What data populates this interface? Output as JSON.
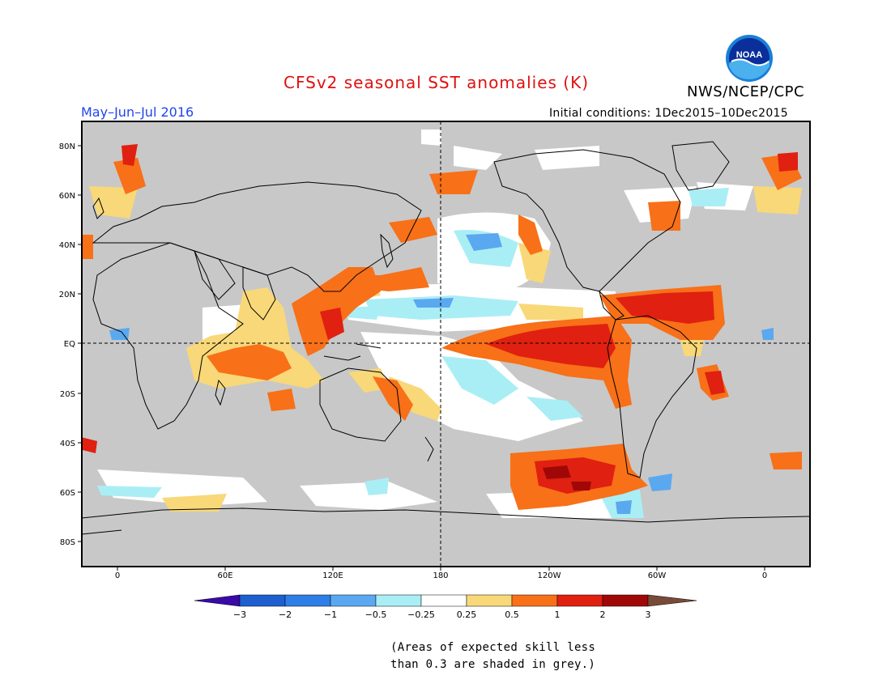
{
  "title": "CFSv2 seasonal SST anomalies (K)",
  "agency": "NWS/NCEP/CPC",
  "logo_text": "NOAA",
  "period": "May–Jun–Jul 2016",
  "initial_conditions": "Initial conditions: 1Dec2015–10Dec2015",
  "lat_labels": [
    "80N",
    "60N",
    "40N",
    "20N",
    "EQ",
    "20S",
    "40S",
    "60S",
    "80S"
  ],
  "lon_labels": [
    "0",
    "60E",
    "120E",
    "180",
    "120W",
    "60W",
    "0"
  ],
  "colorbar": {
    "ticks": [
      "−3",
      "−2",
      "−1",
      "−0.5",
      "−0.25",
      "0.25",
      "0.5",
      "1",
      "2",
      "3"
    ],
    "colors": [
      "#3a0aa8",
      "#1e5fd0",
      "#2e7ee8",
      "#5aa8f0",
      "#aaeef5",
      "#ffffff",
      "#f8d878",
      "#f87018",
      "#e02010",
      "#a00808",
      "#7a4a38"
    ]
  },
  "note_line1": "(Areas of expected skill less",
  "note_line2": "than 0.3 are shaded in grey.)",
  "colors": {
    "grey_mask": "#c8c8c8",
    "title_red": "#e01010",
    "period_blue": "#2044ee"
  }
}
